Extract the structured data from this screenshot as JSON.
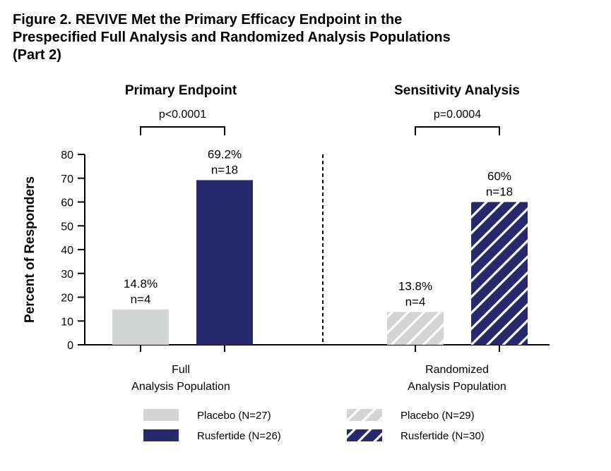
{
  "figure": {
    "title_lines": [
      "Figure 2. REVIVE Met the Primary Efficacy Endpoint in the",
      "Prespecified Full Analysis and Randomized Analysis Populations",
      "(Part 2)"
    ]
  },
  "colors": {
    "placebo": "#d3d4d4",
    "rusfertide": "#27296d",
    "hatch": "#ffffff",
    "axis": "#000000"
  },
  "chart_data": {
    "type": "bar",
    "ylabel": "Percent of Responders",
    "ylim": [
      0,
      80
    ],
    "yticks": [
      0,
      10,
      20,
      30,
      40,
      50,
      60,
      70,
      80
    ],
    "grid": false,
    "legend_position": "bottom",
    "groups": [
      {
        "panel_title": "Primary Endpoint",
        "p_value": "p<0.0001",
        "category_lines": [
          "Full",
          "Analysis Population"
        ],
        "pattern": "solid",
        "bars": [
          {
            "series": "Placebo",
            "value": 14.8,
            "label_pct": "14.8%",
            "label_n": "n=4"
          },
          {
            "series": "Rusfertide",
            "value": 69.2,
            "label_pct": "69.2%",
            "label_n": "n=18"
          }
        ]
      },
      {
        "panel_title": "Sensitivity Analysis",
        "p_value": "p=0.0004",
        "category_lines": [
          "Randomized",
          "Analysis Population"
        ],
        "pattern": "hatched",
        "bars": [
          {
            "series": "Placebo",
            "value": 13.8,
            "label_pct": "13.8%",
            "label_n": "n=4"
          },
          {
            "series": "Rusfertide",
            "value": 60,
            "label_pct": "60%",
            "label_n": "n=18"
          }
        ]
      }
    ],
    "legend": [
      {
        "label": "Placebo (N=27)",
        "series": "Placebo",
        "pattern": "solid"
      },
      {
        "label": "Rusfertide (N=26)",
        "series": "Rusfertide",
        "pattern": "solid"
      },
      {
        "label": "Placebo (N=29)",
        "series": "Placebo",
        "pattern": "hatched"
      },
      {
        "label": "Rusfertide (N=30)",
        "series": "Rusfertide",
        "pattern": "hatched"
      }
    ]
  }
}
